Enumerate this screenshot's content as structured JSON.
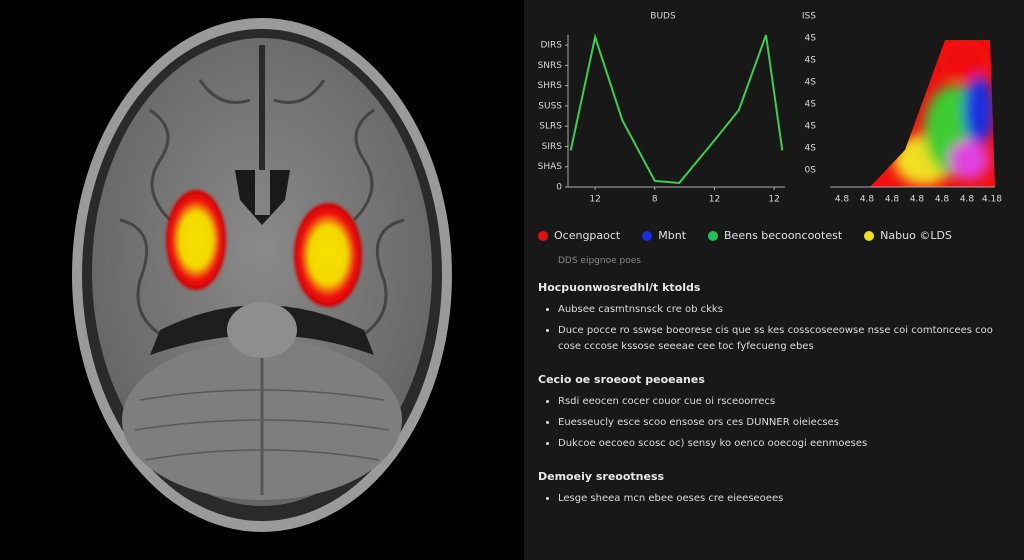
{
  "line_chart": {
    "title": "BUDS",
    "color": "#3ccf4e",
    "xlim": [
      0,
      8
    ],
    "ylim": [
      0,
      7.5
    ],
    "xticks": [
      {
        "value": 1,
        "label": "12"
      },
      {
        "value": 3.2,
        "label": "8"
      },
      {
        "value": 5.4,
        "label": "12"
      },
      {
        "value": 7.6,
        "label": "12"
      }
    ],
    "yticks": [
      {
        "value": 0,
        "label": "0"
      },
      {
        "value": 1,
        "label": "SHAS"
      },
      {
        "value": 2,
        "label": "SIRS"
      },
      {
        "value": 3,
        "label": "SLRS"
      },
      {
        "value": 4,
        "label": "SUSS"
      },
      {
        "value": 5,
        "label": "SHRS"
      },
      {
        "value": 6,
        "label": "SNRS"
      },
      {
        "value": 7,
        "label": "DIRS"
      }
    ],
    "x": [
      0.1,
      1,
      2,
      3.2,
      4.1,
      5.4,
      6.3,
      7.3,
      7.9
    ],
    "values": [
      1.8,
      7.4,
      3.3,
      0.3,
      0.2,
      2.3,
      3.8,
      7.5,
      1.8
    ]
  },
  "area_chart": {
    "ylabels": [
      "ISS",
      "4S",
      "4S",
      "4S",
      "4S",
      "4S",
      "4S",
      "0S"
    ],
    "xlabels": [
      "4.8",
      "4.8",
      "4.8",
      "4.8",
      "4.8",
      "4.8",
      "4.18"
    ]
  },
  "legend": [
    {
      "label": "Ocengpaoct",
      "color": "#e01010"
    },
    {
      "label": "Mbnt",
      "color": "#1a2ee0"
    },
    {
      "label": "Beens becooncootest",
      "color": "#22c25a"
    },
    {
      "label": "Nabuo ©LDS",
      "color": "#f0e020"
    }
  ],
  "note": "DDS eipgnoe poes",
  "sections": [
    {
      "heading": "Hocpuonwosredhl/t ktolds",
      "items": [
        "Aubsee casmtnsnsck cre ob ckks",
        "Duce pocce ro sswse boeorese cis que ss kes cosscoseeowse nsse coi comtoncees coo cose cccose kssose seeeae cee toc fyfecueng ebes"
      ]
    },
    {
      "heading": "Cecio oe sroeoot peoeanes",
      "items": [
        "Rsdi eeocen cocer couor cue oi rsceoorrecs",
        "Euesseucly esce scoo ensose ors ces DUNNER oieiecses",
        "Dukcoe oecoeo scosc oc) sensy ko oenco ooecogi eenmoeses"
      ]
    },
    {
      "heading": "Demoeiy sreootness",
      "items": [
        "Lesge sheea mcn ebee oeses cre eieeseoees"
      ]
    }
  ]
}
